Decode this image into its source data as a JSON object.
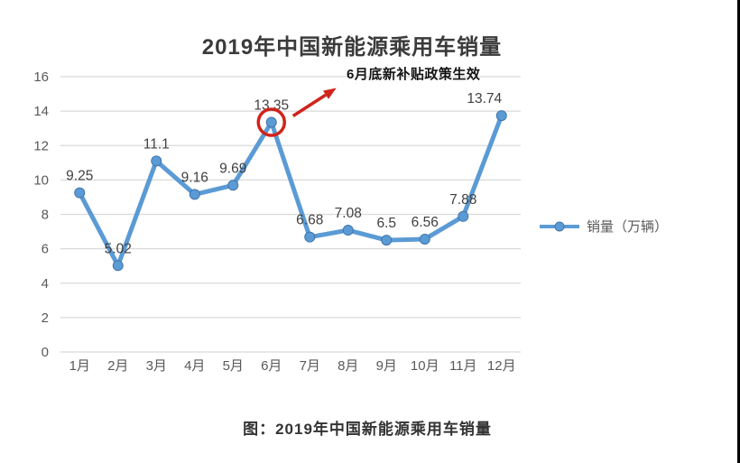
{
  "page": {
    "title": "2019年中国新能源乘用车销量",
    "caption": "图：2019年中国新能源乘用车销量"
  },
  "legend": {
    "label": "销量（万辆）"
  },
  "annotation": {
    "text": "6月底新补贴政策生效"
  },
  "chart_data": {
    "type": "line",
    "title": "2019年中国新能源乘用车销量",
    "categories": [
      "1月",
      "2月",
      "3月",
      "4月",
      "5月",
      "6月",
      "7月",
      "8月",
      "9月",
      "10月",
      "11月",
      "12月"
    ],
    "series": [
      {
        "name": "销量（万辆）",
        "values": [
          9.25,
          5.02,
          11.1,
          9.16,
          9.69,
          13.35,
          6.68,
          7.08,
          6.5,
          6.56,
          7.88,
          13.74
        ]
      }
    ],
    "xlabel": "",
    "ylabel": "",
    "ylim": [
      0,
      16
    ],
    "y_ticks": [
      0,
      2,
      4,
      6,
      8,
      10,
      12,
      14,
      16
    ],
    "grid": true,
    "legend_position": "right",
    "data_labels": true,
    "colors": {
      "line": "#5b9bd5",
      "marker_edge": "#4275a8",
      "grid": "#d9d9d9",
      "tick_text": "#595959",
      "label_text": "#404040"
    },
    "annotation": {
      "text": "6月底新补贴政策生效",
      "target_index": 5,
      "target_value": 13.35,
      "color": "#d0231c"
    }
  }
}
